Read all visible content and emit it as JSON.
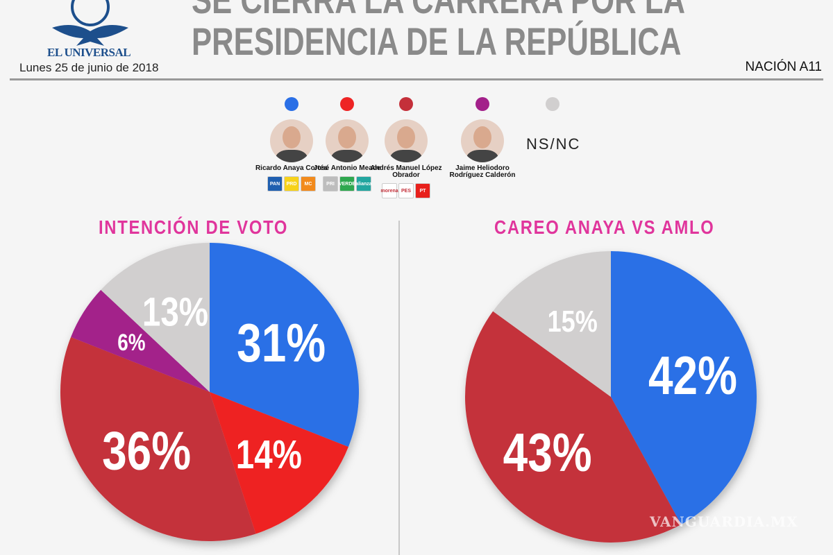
{
  "header": {
    "logo_text": "EL UNIVERSAL",
    "date": "Lunes 25 de junio de 2018",
    "title_line1": "SE CIERRA LA CARRERA POR LA",
    "title_line2": "PRESIDENCIA DE LA REPÚBLICA",
    "section": "NACIÓN A11"
  },
  "legend": [
    {
      "name": "Ricardo Anaya Cortés",
      "color": "#2a6fe6",
      "parties": [
        "PAN",
        "PRD",
        "MC"
      ],
      "party_colors": [
        "#1f5fb0",
        "#f7d21a",
        "#f28a1c"
      ]
    },
    {
      "name": "José Antonio Meade",
      "color": "#ee2424",
      "parties": [
        "PRI",
        "VERDE",
        "alianza"
      ],
      "party_colors": [
        "#bdbdbd",
        "#2fa84f",
        "#23a6a0"
      ]
    },
    {
      "name": "Andrés Manuel López Obrador",
      "color": "#c4303a",
      "parties": [
        "morena",
        "PES",
        "PT"
      ],
      "party_colors": [
        "#ffffff",
        "#ffffff",
        "#e8201c"
      ]
    },
    {
      "name": "Jaime Heliodoro Rodríguez Calderón",
      "color": "#a3208a",
      "parties": [],
      "party_colors": []
    },
    {
      "name": "NS/NC",
      "color": "#d1cfcf",
      "parties": [],
      "party_colors": []
    }
  ],
  "watermark": "VANGUARDIA.MX",
  "chart_data": [
    {
      "type": "pie",
      "title": "INTENCIÓN DE VOTO",
      "categories": [
        "Ricardo Anaya Cortés",
        "José Antonio Meade",
        "Andrés Manuel López Obrador",
        "Jaime Heliodoro Rodríguez Calderón",
        "NS/NC"
      ],
      "values": [
        31,
        14,
        36,
        6,
        13
      ],
      "labels": [
        "31%",
        "14%",
        "36%",
        "6%",
        "13%"
      ],
      "colors": [
        "#2a6fe6",
        "#ee2424",
        "#c4303a",
        "#a3208a",
        "#d1cfcf"
      ],
      "start": "top, clockwise"
    },
    {
      "type": "pie",
      "title": "CAREO ANAYA VS AMLO",
      "categories": [
        "Ricardo Anaya Cortés",
        "Andrés Manuel López Obrador",
        "NS/NC"
      ],
      "values": [
        42,
        43,
        15
      ],
      "labels": [
        "42%",
        "43%",
        "15%"
      ],
      "colors": [
        "#2a6fe6",
        "#c4303a",
        "#d1cfcf"
      ],
      "start": "top, clockwise"
    }
  ]
}
